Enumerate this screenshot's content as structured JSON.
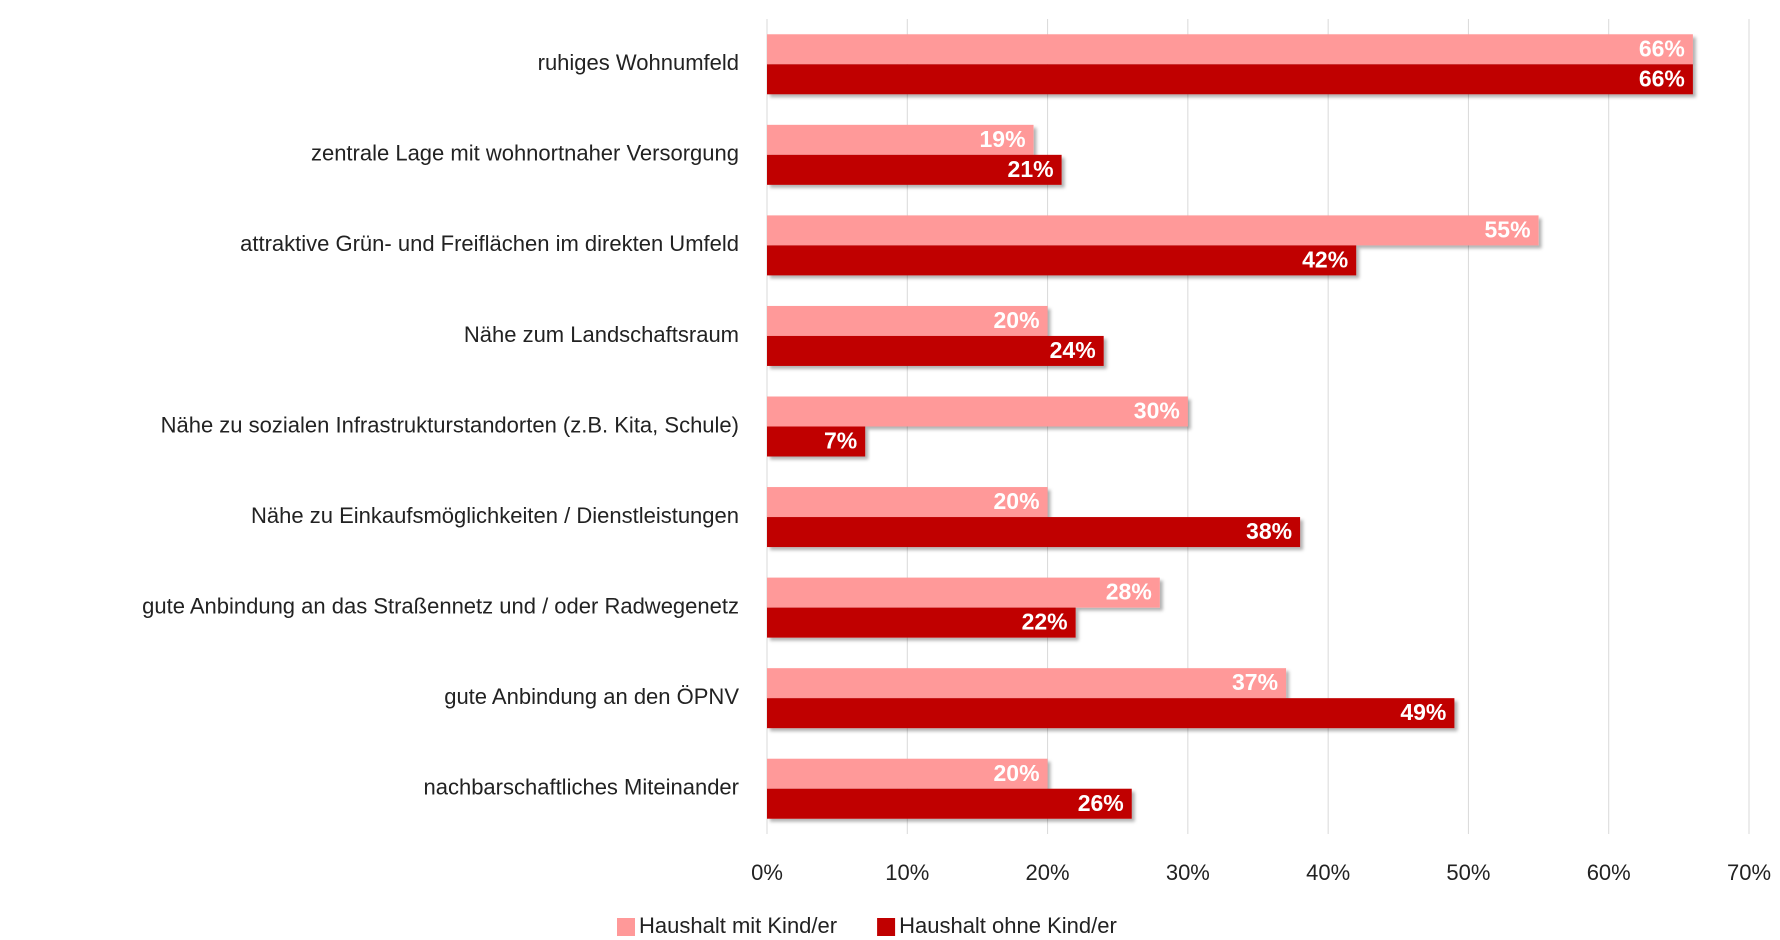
{
  "chart_data": {
    "type": "bar",
    "orientation": "horizontal",
    "categories": [
      "ruhiges Wohnumfeld",
      "zentrale Lage mit wohnortnaher Versorgung",
      "attraktive Grün- und Freiflächen im direkten Umfeld",
      "Nähe zum Landschaftsraum",
      "Nähe zu sozialen Infrastrukturstandorten (z.B. Kita, Schule)",
      "Nähe zu Einkaufsmöglichkeiten / Dienstleistungen",
      "gute Anbindung an das Straßennetz und / oder Radwegenetz",
      "gute Anbindung an den ÖPNV",
      "nachbarschaftliches Miteinander"
    ],
    "series": [
      {
        "name": "Haushalt mit Kind/er",
        "color": "#ff9999",
        "values": [
          66,
          19,
          55,
          20,
          30,
          20,
          28,
          37,
          20
        ],
        "value_labels": [
          "66%",
          "19%",
          "55%",
          "20%",
          "30%",
          "20%",
          "28%",
          "37%",
          "20%"
        ]
      },
      {
        "name": "Haushalt ohne Kind/er",
        "color": "#c00000",
        "values": [
          66,
          21,
          42,
          24,
          7,
          38,
          22,
          49,
          26
        ],
        "value_labels": [
          "66%",
          "21%",
          "42%",
          "24%",
          "7%",
          "38%",
          "22%",
          "49%",
          "26%"
        ]
      }
    ],
    "xlim": [
      0,
      70
    ],
    "xticks": [
      {
        "value": 0,
        "label": "0%"
      },
      {
        "value": 10,
        "label": "10%"
      },
      {
        "value": 20,
        "label": "20%"
      },
      {
        "value": 30,
        "label": "30%"
      },
      {
        "value": 40,
        "label": "40%"
      },
      {
        "value": 50,
        "label": "50%"
      },
      {
        "value": 60,
        "label": "60%"
      },
      {
        "value": 70,
        "label": "70%"
      }
    ],
    "grid": true,
    "legend": "bottom"
  }
}
